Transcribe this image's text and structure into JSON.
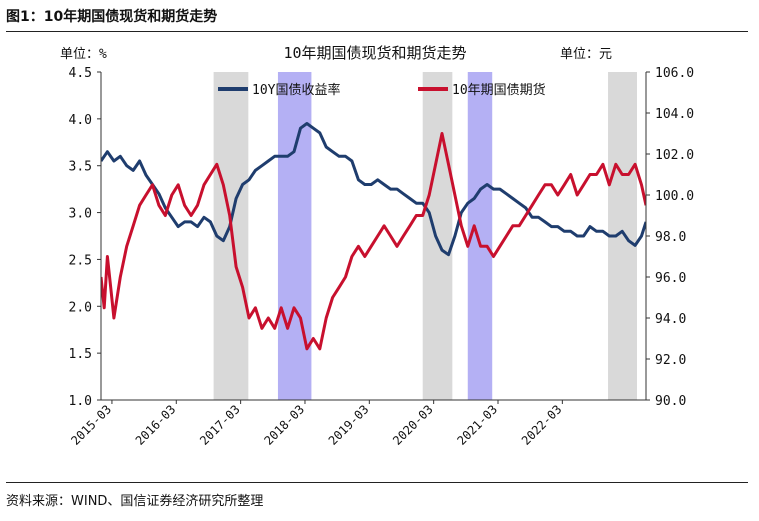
{
  "figure_title": "图1：10年期国债现货和期货走势",
  "source_text": "资料来源：WIND、国信证券经济研究所整理",
  "colors": {
    "yield_line": "#1f3d6e",
    "futures_line": "#c8102e",
    "shade_gray": "#d9d9d9",
    "shade_purple": "#b4b0f4"
  },
  "chart_data": {
    "type": "line",
    "title": "10年期国债现货和期货走势",
    "left_unit": "单位：%",
    "right_unit": "单位：元",
    "x_ticks": [
      "2015-03",
      "2016-03",
      "2017-03",
      "2018-03",
      "2019-03",
      "2020-03",
      "2021-03",
      "2022-03"
    ],
    "x_range": [
      2015.0,
      2023.47
    ],
    "y_left": {
      "min": 1.0,
      "max": 4.5,
      "ticks": [
        "4.5",
        "4.0",
        "3.5",
        "3.0",
        "2.5",
        "2.0",
        "1.5",
        "1.0"
      ]
    },
    "y_right": {
      "min": 90.0,
      "max": 106.0,
      "ticks": [
        "106.0",
        "104.0",
        "102.0",
        "100.0",
        "98.0",
        "96.0",
        "94.0",
        "92.0",
        "90.0"
      ]
    },
    "legend": [
      "10Y国债收益率",
      "10年期国债期货"
    ],
    "shaded_periods": [
      {
        "start": 2016.75,
        "end": 2017.29,
        "color": "gray"
      },
      {
        "start": 2017.75,
        "end": 2018.27,
        "color": "purple"
      },
      {
        "start": 2020.0,
        "end": 2020.46,
        "color": "gray"
      },
      {
        "start": 2020.7,
        "end": 2021.08,
        "color": "purple"
      },
      {
        "start": 2022.88,
        "end": 2023.33,
        "color": "gray"
      }
    ],
    "series": [
      {
        "name": "10Y国债收益率",
        "axis": "left",
        "x": [
          2015.0,
          2015.1,
          2015.2,
          2015.3,
          2015.4,
          2015.5,
          2015.6,
          2015.7,
          2015.8,
          2015.9,
          2016.0,
          2016.1,
          2016.2,
          2016.3,
          2016.4,
          2016.5,
          2016.6,
          2016.7,
          2016.8,
          2016.9,
          2017.0,
          2017.1,
          2017.2,
          2017.3,
          2017.4,
          2017.5,
          2017.6,
          2017.7,
          2017.8,
          2017.9,
          2018.0,
          2018.1,
          2018.2,
          2018.3,
          2018.4,
          2018.5,
          2018.6,
          2018.7,
          2018.8,
          2018.9,
          2019.0,
          2019.1,
          2019.2,
          2019.3,
          2019.4,
          2019.5,
          2019.6,
          2019.7,
          2019.8,
          2019.9,
          2020.0,
          2020.1,
          2020.2,
          2020.3,
          2020.4,
          2020.5,
          2020.6,
          2020.7,
          2020.8,
          2020.9,
          2021.0,
          2021.1,
          2021.2,
          2021.3,
          2021.4,
          2021.5,
          2021.6,
          2021.7,
          2021.8,
          2021.9,
          2022.0,
          2022.1,
          2022.2,
          2022.3,
          2022.4,
          2022.5,
          2022.6,
          2022.7,
          2022.8,
          2022.9,
          2023.0,
          2023.1,
          2023.2,
          2023.3,
          2023.4,
          2023.47
        ],
        "values": [
          3.55,
          3.65,
          3.55,
          3.6,
          3.5,
          3.45,
          3.55,
          3.4,
          3.3,
          3.2,
          3.05,
          2.95,
          2.85,
          2.9,
          2.9,
          2.85,
          2.95,
          2.9,
          2.75,
          2.7,
          2.85,
          3.15,
          3.3,
          3.35,
          3.45,
          3.5,
          3.55,
          3.6,
          3.6,
          3.6,
          3.65,
          3.9,
          3.95,
          3.9,
          3.85,
          3.7,
          3.65,
          3.6,
          3.6,
          3.55,
          3.35,
          3.3,
          3.3,
          3.35,
          3.3,
          3.25,
          3.25,
          3.2,
          3.15,
          3.1,
          3.1,
          3.0,
          2.75,
          2.6,
          2.55,
          2.75,
          3.0,
          3.1,
          3.15,
          3.25,
          3.3,
          3.25,
          3.25,
          3.2,
          3.15,
          3.1,
          3.05,
          2.95,
          2.95,
          2.9,
          2.85,
          2.85,
          2.8,
          2.8,
          2.75,
          2.75,
          2.85,
          2.8,
          2.8,
          2.75,
          2.75,
          2.8,
          2.7,
          2.65,
          2.75,
          2.9
        ]
      },
      {
        "name": "10年期国债期货",
        "axis": "right",
        "x": [
          2015.0,
          2015.05,
          2015.1,
          2015.15,
          2015.2,
          2015.3,
          2015.4,
          2015.5,
          2015.6,
          2015.7,
          2015.8,
          2015.9,
          2016.0,
          2016.1,
          2016.2,
          2016.3,
          2016.4,
          2016.5,
          2016.6,
          2016.7,
          2016.8,
          2016.9,
          2017.0,
          2017.1,
          2017.2,
          2017.3,
          2017.4,
          2017.5,
          2017.6,
          2017.7,
          2017.8,
          2017.9,
          2018.0,
          2018.1,
          2018.2,
          2018.3,
          2018.4,
          2018.5,
          2018.6,
          2018.7,
          2018.8,
          2018.9,
          2019.0,
          2019.1,
          2019.2,
          2019.3,
          2019.4,
          2019.5,
          2019.6,
          2019.7,
          2019.8,
          2019.9,
          2020.0,
          2020.1,
          2020.2,
          2020.3,
          2020.4,
          2020.5,
          2020.6,
          2020.7,
          2020.8,
          2020.9,
          2021.0,
          2021.1,
          2021.2,
          2021.3,
          2021.4,
          2021.5,
          2021.6,
          2021.7,
          2021.8,
          2021.9,
          2022.0,
          2022.1,
          2022.2,
          2022.3,
          2022.4,
          2022.5,
          2022.6,
          2022.7,
          2022.8,
          2022.9,
          2023.0,
          2023.1,
          2023.2,
          2023.3,
          2023.4,
          2023.47
        ],
        "values": [
          96.0,
          94.5,
          97.0,
          95.5,
          94.0,
          96.0,
          97.5,
          98.5,
          99.5,
          100.0,
          100.5,
          99.5,
          99.0,
          100.0,
          100.5,
          99.5,
          99.0,
          99.5,
          100.5,
          101.0,
          101.5,
          100.5,
          99.0,
          96.5,
          95.5,
          94.0,
          94.5,
          93.5,
          94.0,
          93.5,
          94.5,
          93.5,
          94.5,
          94.0,
          92.5,
          93.0,
          92.5,
          94.0,
          95.0,
          95.5,
          96.0,
          97.0,
          97.5,
          97.0,
          97.5,
          98.0,
          98.5,
          98.0,
          97.5,
          98.0,
          98.5,
          99.0,
          99.0,
          100.0,
          101.5,
          103.0,
          101.5,
          100.0,
          98.5,
          97.5,
          98.5,
          97.5,
          97.5,
          97.0,
          97.5,
          98.0,
          98.5,
          98.5,
          99.0,
          99.5,
          100.0,
          100.5,
          100.5,
          100.0,
          100.5,
          101.0,
          100.0,
          100.5,
          101.0,
          101.0,
          101.5,
          100.5,
          101.5,
          101.0,
          101.0,
          101.5,
          100.5,
          99.5
        ]
      }
    ]
  }
}
